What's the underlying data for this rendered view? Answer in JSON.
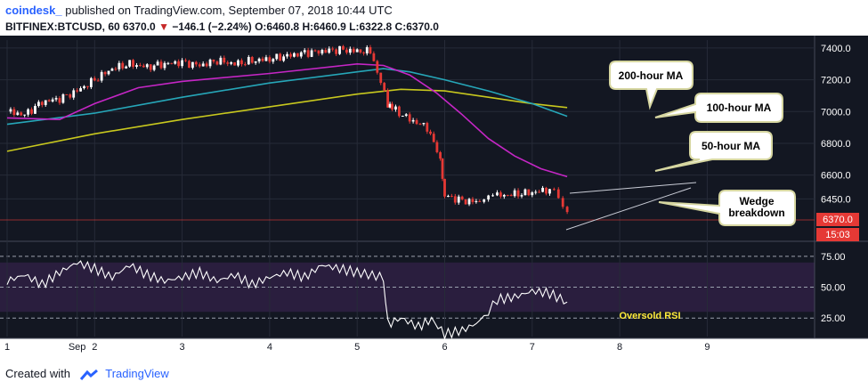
{
  "header": {
    "author": "coindesk_",
    "published_text": "published on TradingView.com, September 07, 2018 10:44 UTC"
  },
  "symbol_line": {
    "symbol": "BITFINEX:BTCUSD, 60",
    "last": "6370.0",
    "arrow": "▼",
    "change": "−146.1 (−2.24%)",
    "open_label": "O:",
    "open": "6460.8",
    "high_label": "H:",
    "high": "6460.9",
    "low_label": "L:",
    "low": "6322.8",
    "close_label": "C:",
    "close": "6370.0"
  },
  "price_badge": "6370.0",
  "time_badge": "15:03",
  "footer": {
    "created_with": "Created with",
    "brand": "TradingView"
  },
  "colors": {
    "background": "#131722",
    "rsi_band": "#2a1e3e",
    "candle_up": "#ffffff",
    "candle_down": "#e53935",
    "ma50": "#c526c5",
    "ma100": "#26a6b8",
    "ma200": "#c8c81e",
    "rsi": "#ffffff",
    "oversold_label": "#ffeb3b"
  },
  "chart_data": [
    {
      "type": "candlestick",
      "title": "BITFINEX:BTCUSD, 60",
      "x_ticks": [
        "1",
        "Sep",
        "2",
        "3",
        "4",
        "5",
        "6",
        "7",
        "8",
        "9"
      ],
      "x_tick_days": [
        1,
        1.8,
        2,
        3,
        4,
        5,
        6,
        7,
        8,
        9
      ],
      "y_ticks": [
        6450.0,
        6600.0,
        6800.0,
        7000.0,
        7200.0,
        7400.0
      ],
      "ylim": [
        6200,
        7450
      ],
      "last_price": 6370.0,
      "series": [
        {
          "name": "price",
          "x": [
            1.0,
            1.2,
            1.4,
            1.6,
            1.8,
            2.0,
            2.2,
            2.4,
            2.6,
            2.8,
            3.0,
            3.2,
            3.4,
            3.6,
            3.8,
            4.0,
            4.2,
            4.4,
            4.6,
            4.8,
            5.0,
            5.15,
            5.35,
            5.4,
            5.6,
            5.8,
            5.95,
            6.0,
            6.2,
            6.4,
            6.5,
            6.6,
            6.8,
            7.0,
            7.2,
            7.3,
            7.4
          ],
          "close": [
            7000,
            6980,
            7060,
            7080,
            7130,
            7200,
            7270,
            7300,
            7280,
            7300,
            7310,
            7290,
            7320,
            7300,
            7320,
            7330,
            7350,
            7370,
            7380,
            7390,
            7380,
            7380,
            7050,
            7020,
            6950,
            6900,
            6700,
            6470,
            6440,
            6430,
            6480,
            6470,
            6480,
            6490,
            6510,
            6460,
            6370
          ]
        },
        {
          "name": "200-hour MA",
          "x": [
            1.0,
            2.0,
            3.0,
            4.0,
            5.0,
            5.5,
            6.0,
            6.5,
            7.0,
            7.4
          ],
          "values": [
            6750,
            6860,
            6950,
            7030,
            7110,
            7140,
            7130,
            7090,
            7050,
            7025
          ]
        },
        {
          "name": "100-hour MA",
          "x": [
            1.0,
            2.0,
            3.0,
            4.0,
            5.0,
            5.3,
            5.6,
            6.0,
            6.5,
            7.0,
            7.4
          ],
          "values": [
            6920,
            6990,
            7090,
            7180,
            7250,
            7270,
            7250,
            7200,
            7130,
            7050,
            6970
          ]
        },
        {
          "name": "50-hour MA",
          "x": [
            1.0,
            1.6,
            2.0,
            2.5,
            3.0,
            4.0,
            5.0,
            5.3,
            5.6,
            5.9,
            6.2,
            6.5,
            6.8,
            7.1,
            7.4
          ],
          "values": [
            6960,
            6950,
            7050,
            7150,
            7190,
            7240,
            7300,
            7290,
            7230,
            7120,
            6980,
            6830,
            6720,
            6640,
            6590
          ]
        }
      ],
      "annotations": [
        "200-hour MA",
        "100-hour MA",
        "50-hour MA",
        "Wedge breakdown"
      ]
    },
    {
      "type": "line",
      "title": "RSI",
      "y_ticks": [
        25.0,
        50.0,
        75.0
      ],
      "ylim": [
        10,
        85
      ],
      "band": [
        30,
        70
      ],
      "series": [
        {
          "name": "RSI",
          "x": [
            1.0,
            1.2,
            1.4,
            1.6,
            1.8,
            2.0,
            2.2,
            2.4,
            2.6,
            2.8,
            3.0,
            3.2,
            3.4,
            3.6,
            3.8,
            4.0,
            4.2,
            4.4,
            4.6,
            4.8,
            5.0,
            5.3,
            5.35,
            5.5,
            5.7,
            5.85,
            6.0,
            6.2,
            6.4,
            6.5,
            6.6,
            6.8,
            7.0,
            7.2,
            7.4
          ],
          "values": [
            55,
            60,
            52,
            62,
            70,
            65,
            58,
            68,
            60,
            55,
            58,
            62,
            55,
            60,
            52,
            58,
            62,
            58,
            68,
            65,
            62,
            58,
            20,
            25,
            18,
            24,
            12,
            15,
            22,
            30,
            40,
            42,
            47,
            45,
            38
          ]
        }
      ],
      "annotations": [
        "Oversold RSI"
      ]
    }
  ]
}
